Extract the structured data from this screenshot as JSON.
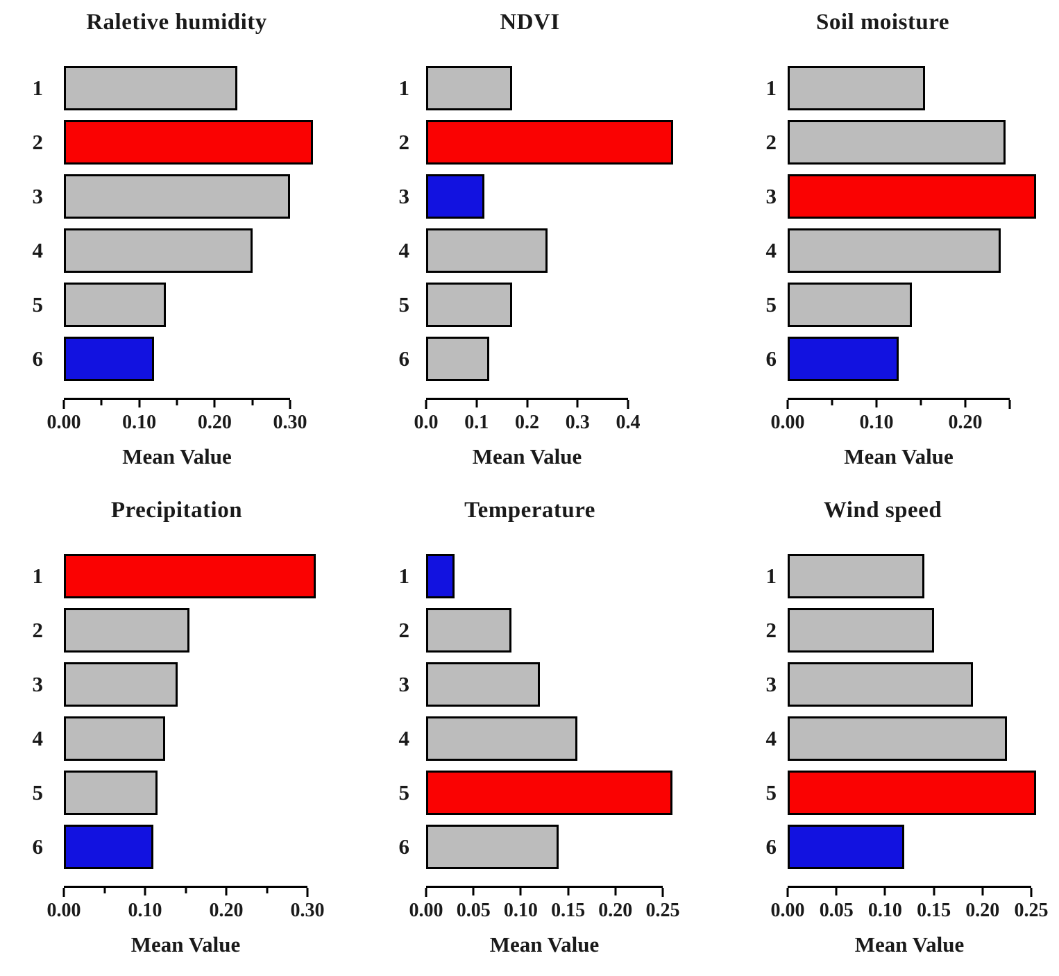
{
  "figure": {
    "background": "#ffffff",
    "x_axis_label": "Mean Value"
  },
  "palette": {
    "gray": "#bcbcbc",
    "red": "#fa0202",
    "blue": "#1212e0",
    "bar_border": "#000000",
    "axis_color": "#000000",
    "text_color": "#1a1a1a"
  },
  "chart_data": [
    {
      "type": "bar",
      "orientation": "horizontal",
      "title": "Raletive humidity",
      "xlabel": "Mean Value",
      "ylabel": "",
      "categories": [
        "1",
        "2",
        "3",
        "4",
        "5",
        "6"
      ],
      "values": [
        0.23,
        0.33,
        0.3,
        0.25,
        0.135,
        0.12
      ],
      "bar_colors": [
        "gray",
        "red",
        "gray",
        "gray",
        "gray",
        "blue"
      ],
      "xlim": [
        0,
        0.3
      ],
      "grid": false,
      "legend": false,
      "ticks": [
        {
          "value": 0.0,
          "label": "0.00"
        },
        {
          "value": 0.05,
          "label": ""
        },
        {
          "value": 0.1,
          "label": "0.10"
        },
        {
          "value": 0.15,
          "label": ""
        },
        {
          "value": 0.2,
          "label": "0.20"
        },
        {
          "value": 0.25,
          "label": ""
        },
        {
          "value": 0.3,
          "label": "0.30"
        }
      ]
    },
    {
      "type": "bar",
      "orientation": "horizontal",
      "title": "NDVI",
      "xlabel": "Mean Value",
      "ylabel": "",
      "categories": [
        "1",
        "2",
        "3",
        "4",
        "5",
        "6"
      ],
      "values": [
        0.17,
        0.49,
        0.115,
        0.24,
        0.17,
        0.125
      ],
      "bar_colors": [
        "gray",
        "red",
        "blue",
        "gray",
        "gray",
        "gray"
      ],
      "xlim": [
        0,
        0.4
      ],
      "grid": false,
      "legend": false,
      "ticks": [
        {
          "value": 0.0,
          "label": "0.0"
        },
        {
          "value": 0.1,
          "label": "0.1"
        },
        {
          "value": 0.2,
          "label": "0.2"
        },
        {
          "value": 0.3,
          "label": "0.3"
        },
        {
          "value": 0.4,
          "label": "0.4"
        }
      ]
    },
    {
      "type": "bar",
      "orientation": "horizontal",
      "title": "Soil moisture",
      "xlabel": "Mean Value",
      "ylabel": "",
      "categories": [
        "1",
        "2",
        "3",
        "4",
        "5",
        "6"
      ],
      "values": [
        0.155,
        0.245,
        0.28,
        0.24,
        0.14,
        0.125
      ],
      "bar_colors": [
        "gray",
        "gray",
        "red",
        "gray",
        "gray",
        "blue"
      ],
      "xlim": [
        0,
        0.25
      ],
      "grid": false,
      "legend": false,
      "ticks": [
        {
          "value": 0.0,
          "label": "0.00"
        },
        {
          "value": 0.05,
          "label": ""
        },
        {
          "value": 0.1,
          "label": "0.10"
        },
        {
          "value": 0.15,
          "label": ""
        },
        {
          "value": 0.2,
          "label": "0.20"
        },
        {
          "value": 0.25,
          "label": ""
        }
      ]
    },
    {
      "type": "bar",
      "orientation": "horizontal",
      "title": "Precipitation",
      "xlabel": "Mean Value",
      "ylabel": "",
      "categories": [
        "1",
        "2",
        "3",
        "4",
        "5",
        "6"
      ],
      "values": [
        0.31,
        0.155,
        0.14,
        0.125,
        0.115,
        0.11
      ],
      "bar_colors": [
        "red",
        "gray",
        "gray",
        "gray",
        "gray",
        "blue"
      ],
      "xlim": [
        0,
        0.3
      ],
      "grid": false,
      "legend": false,
      "ticks": [
        {
          "value": 0.0,
          "label": "0.00"
        },
        {
          "value": 0.05,
          "label": ""
        },
        {
          "value": 0.1,
          "label": "0.10"
        },
        {
          "value": 0.15,
          "label": ""
        },
        {
          "value": 0.2,
          "label": "0.20"
        },
        {
          "value": 0.25,
          "label": ""
        },
        {
          "value": 0.3,
          "label": "0.30"
        }
      ]
    },
    {
      "type": "bar",
      "orientation": "horizontal",
      "title": "Temperature",
      "xlabel": "Mean Value",
      "ylabel": "",
      "categories": [
        "1",
        "2",
        "3",
        "4",
        "5",
        "6"
      ],
      "values": [
        0.03,
        0.09,
        0.12,
        0.16,
        0.26,
        0.14
      ],
      "bar_colors": [
        "blue",
        "gray",
        "gray",
        "gray",
        "red",
        "gray"
      ],
      "xlim": [
        0,
        0.25
      ],
      "grid": false,
      "legend": false,
      "ticks": [
        {
          "value": 0.0,
          "label": "0.00"
        },
        {
          "value": 0.05,
          "label": "0.05"
        },
        {
          "value": 0.1,
          "label": "0.10"
        },
        {
          "value": 0.15,
          "label": "0.15"
        },
        {
          "value": 0.2,
          "label": "0.20"
        },
        {
          "value": 0.25,
          "label": "0.25"
        }
      ]
    },
    {
      "type": "bar",
      "orientation": "horizontal",
      "title": "Wind speed",
      "xlabel": "Mean Value",
      "ylabel": "",
      "categories": [
        "1",
        "2",
        "3",
        "4",
        "5",
        "6"
      ],
      "values": [
        0.14,
        0.15,
        0.19,
        0.225,
        0.255,
        0.12
      ],
      "bar_colors": [
        "gray",
        "gray",
        "gray",
        "gray",
        "red",
        "blue"
      ],
      "xlim": [
        0,
        0.25
      ],
      "grid": false,
      "legend": false,
      "ticks": [
        {
          "value": 0.0,
          "label": "0.00"
        },
        {
          "value": 0.05,
          "label": "0.05"
        },
        {
          "value": 0.1,
          "label": "0.10"
        },
        {
          "value": 0.15,
          "label": "0.15"
        },
        {
          "value": 0.2,
          "label": "0.20"
        },
        {
          "value": 0.25,
          "label": "0.25"
        }
      ]
    }
  ]
}
